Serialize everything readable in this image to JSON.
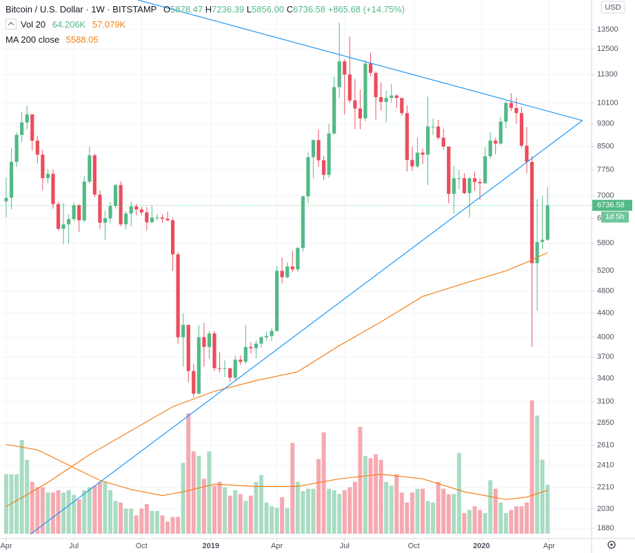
{
  "header": {
    "symbol": "Bitcoin / U.S. Dollar · 1W · BITSTAMP",
    "ohlc": [
      {
        "key": "O",
        "value": "5878.47"
      },
      {
        "key": "H",
        "value": "7236.39"
      },
      {
        "key": "L",
        "value": "5856.00"
      },
      {
        "key": "C",
        "value": "6736.58"
      }
    ],
    "change": "+865.68 (+14.75%)",
    "vol_title": "Vol 20",
    "vol_last": "64.206K",
    "vol_ma": "57.079K",
    "ma_title": "MA 200 close",
    "currency": "USD",
    "countdown": "1d 5h"
  },
  "chart_data": {
    "type": "candlestick",
    "log_scale": true,
    "grid": true,
    "up_color": "#53b987",
    "down_color": "#eb4d5c",
    "up_volume_color": "#a9dcc3",
    "down_volume_color": "#f5a9b0",
    "ylim": [
      1805,
      15170
    ],
    "yticks": [
      13500,
      12500,
      11300,
      10100,
      9300,
      8500,
      7750,
      7000,
      6400,
      5800,
      5200,
      4800,
      4400,
      4000,
      3700,
      3400,
      3100,
      2850,
      2610,
      2410,
      2210,
      2030,
      1880
    ],
    "volume_ylim": [
      0,
      700
    ],
    "xticks": [
      {
        "value": 0,
        "label": "Apr"
      },
      {
        "value": 13,
        "label": "Jul"
      },
      {
        "value": 26,
        "label": "Oct"
      },
      {
        "value": 39.3,
        "label": "2019"
      },
      {
        "value": 52,
        "label": "Apr"
      },
      {
        "value": 65,
        "label": "Jul"
      },
      {
        "value": 78.3,
        "label": "Oct"
      },
      {
        "value": 91.3,
        "label": "2020"
      },
      {
        "value": 104.3,
        "label": "Apr"
      }
    ],
    "open": [
      6844,
      6940,
      8000,
      8900,
      9350,
      9650,
      8700,
      8230,
      7500,
      7630,
      6770,
      6140,
      6250,
      6380,
      6740,
      6350,
      7400,
      8210,
      7030,
      6290,
      6400,
      6720,
      7300,
      6250,
      6520,
      6710,
      6630,
      6550,
      6300,
      6420,
      6420,
      6390,
      6350,
      5550,
      4000,
      4200,
      3500,
      3200,
      4000,
      3850,
      4060,
      3540,
      3530,
      3540,
      3410,
      3660,
      3630,
      3850,
      3830,
      3900,
      4000,
      4020,
      4100,
      5200,
      5070,
      5290,
      5230,
      5690,
      6980,
      8150,
      8720,
      8050,
      7600,
      8950,
      10750,
      11900,
      11300,
      10200,
      9880,
      9500,
      11800,
      11370,
      10330,
      10140,
      10300,
      10400,
      10300,
      9700,
      8060,
      7860,
      8300,
      8230,
      9200,
      9200,
      8800,
      8500,
      7050,
      7500,
      7500,
      7070,
      7500,
      7390,
      7350,
      8180,
      8700,
      8600,
      9380,
      10100,
      9900,
      9700,
      8530,
      8000,
      5360,
      5830,
      5878.47
    ],
    "high": [
      7520,
      8450,
      8980,
      9760,
      9990,
      9660,
      8880,
      8380,
      7770,
      7760,
      6830,
      6800,
      6500,
      6800,
      6770,
      7560,
      8500,
      8260,
      7150,
      6600,
      6820,
      7340,
      7410,
      6580,
      6830,
      6780,
      6700,
      6690,
      6730,
      6510,
      6500,
      6570,
      6420,
      5600,
      4400,
      4200,
      3600,
      4200,
      4230,
      4100,
      4100,
      3770,
      3650,
      3540,
      3720,
      3720,
      4200,
      3920,
      3950,
      4020,
      4090,
      4150,
      5300,
      5480,
      5380,
      5630,
      5720,
      7000,
      8300,
      8740,
      9100,
      8200,
      9300,
      11200,
      13880,
      12000,
      13130,
      11100,
      10650,
      11950,
      12320,
      11450,
      10950,
      10600,
      10900,
      10450,
      10300,
      10000,
      8500,
      8800,
      8430,
      10350,
      9500,
      9450,
      9120,
      8500,
      7870,
      7750,
      7650,
      7530,
      7700,
      7500,
      8480,
      9000,
      8800,
      9560,
      10180,
      10500,
      10300,
      9950,
      9180,
      8180,
      6900,
      6990,
      7236.39
    ],
    "low": [
      6430,
      6630,
      7840,
      8650,
      9100,
      8360,
      7950,
      7150,
      7350,
      6650,
      6100,
      5780,
      5790,
      6330,
      6070,
      6300,
      7340,
      6960,
      6140,
      5880,
      6270,
      6650,
      6200,
      6130,
      6200,
      6480,
      6480,
      6100,
      6290,
      6350,
      6290,
      6330,
      5200,
      3900,
      3560,
      3350,
      3150,
      3190,
      3560,
      3670,
      3500,
      3480,
      3420,
      3350,
      3370,
      3590,
      3600,
      3750,
      3680,
      3840,
      3950,
      3940,
      4090,
      4950,
      5050,
      5180,
      5180,
      5610,
      6800,
      7500,
      7850,
      7450,
      7510,
      8900,
      10300,
      9650,
      10100,
      9100,
      9100,
      9400,
      11220,
      9460,
      9800,
      9350,
      10100,
      9900,
      9600,
      7700,
      7730,
      7800,
      7930,
      7300,
      8900,
      8730,
      8400,
      6790,
      6520,
      7180,
      7040,
      6430,
      7140,
      6880,
      7340,
      8100,
      8240,
      8560,
      9140,
      9780,
      9300,
      8450,
      7650,
      3850,
      4440,
      5670,
      5856
    ],
    "close": [
      6940,
      8000,
      8900,
      9350,
      9650,
      8700,
      8230,
      7500,
      7630,
      6770,
      6140,
      6250,
      6380,
      6740,
      6350,
      7400,
      8210,
      7030,
      6290,
      6400,
      6720,
      7300,
      6250,
      6520,
      6710,
      6630,
      6550,
      6300,
      6420,
      6420,
      6390,
      6350,
      5550,
      4000,
      4200,
      3500,
      3200,
      4000,
      3850,
      4060,
      3540,
      3530,
      3540,
      3410,
      3660,
      3630,
      3850,
      3830,
      3900,
      4000,
      4020,
      4100,
      5200,
      5070,
      5290,
      5230,
      5690,
      6980,
      8150,
      8720,
      8050,
      7600,
      8950,
      10750,
      11900,
      11300,
      10200,
      9880,
      9500,
      11800,
      11370,
      10330,
      10140,
      10300,
      10400,
      10300,
      9700,
      8060,
      7860,
      8300,
      8230,
      9200,
      9200,
      8800,
      8500,
      7050,
      7500,
      7500,
      7070,
      7500,
      7390,
      7350,
      8180,
      8700,
      8600,
      9380,
      10100,
      9900,
      9700,
      8530,
      8000,
      5360,
      5830,
      5878,
      6736.58
    ],
    "volume": [
      78,
      78,
      78,
      123,
      97,
      68,
      61,
      61,
      54,
      54,
      57,
      54,
      57,
      51,
      45,
      57,
      61,
      63,
      68,
      68,
      57,
      43,
      41,
      33,
      33,
      24,
      33,
      39,
      30,
      30,
      24,
      16,
      22,
      22,
      93,
      158,
      108,
      102,
      72,
      108,
      63,
      68,
      61,
      50,
      57,
      52,
      43,
      50,
      68,
      77,
      41,
      36,
      34,
      48,
      34,
      119,
      68,
      56,
      59,
      59,
      98,
      133,
      59,
      57,
      52,
      57,
      61,
      68,
      140,
      102,
      99,
      104,
      97,
      68,
      63,
      78,
      54,
      41,
      54,
      59,
      59,
      43,
      41,
      68,
      59,
      52,
      52,
      106,
      27,
      31,
      36,
      31,
      27,
      70,
      59,
      41,
      27,
      31,
      36,
      36,
      41,
      175,
      155,
      97,
      64.206
    ],
    "ma200": {
      "name": "MA 200 close",
      "color": "#f57f17",
      "x": [
        0,
        8,
        16,
        24,
        32,
        40,
        48,
        56,
        64,
        72,
        80,
        88,
        96,
        100,
        104
      ],
      "values": [
        2047,
        2253,
        2515,
        2765,
        3040,
        3230,
        3370,
        3490,
        3870,
        4250,
        4700,
        4950,
        5200,
        5380,
        5588.05
      ]
    },
    "volume_ma": {
      "color": "#f57f17",
      "x": [
        0,
        6,
        12,
        18,
        24,
        30,
        34,
        40,
        48,
        56,
        64,
        72,
        80,
        88,
        96,
        100,
        104
      ],
      "values": [
        117,
        110,
        90,
        70,
        58,
        50,
        55,
        65,
        62,
        62,
        72,
        78,
        72,
        55,
        45,
        48,
        57.079
      ]
    },
    "trendlines": [
      {
        "color": "#2196f3",
        "x": [
          25.3,
          110.7
        ],
        "values": [
          15170,
          9420
        ]
      },
      {
        "color": "#2196f3",
        "x": [
          4.6,
          110.7
        ],
        "values": [
          1835,
          9420
        ]
      }
    ]
  }
}
